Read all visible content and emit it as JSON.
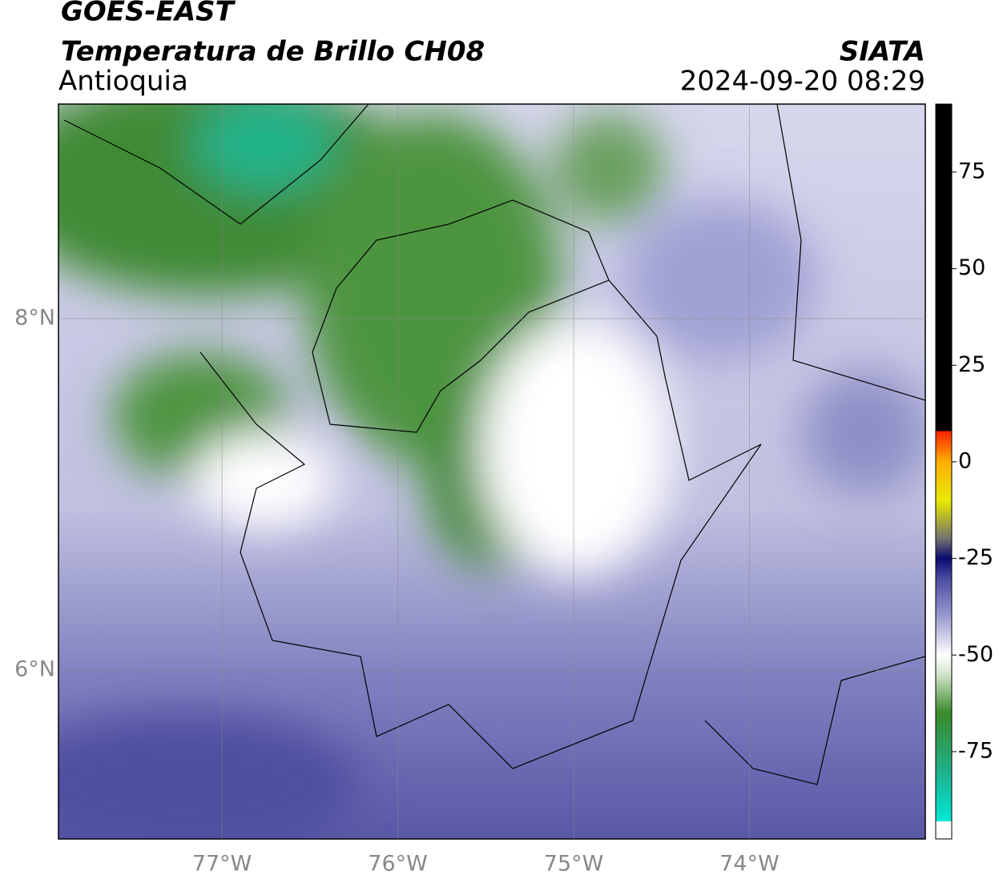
{
  "header": {
    "title": "GOES-EAST",
    "subtitle": "Temperatura de Brillo CH08",
    "region": "Antioquia",
    "source": "SIATA",
    "datetime": "2024-09-20 08:29"
  },
  "map": {
    "lonlim": [
      -77.93,
      -73.0
    ],
    "latlim": [
      5.04,
      9.22
    ],
    "xticks": [
      {
        "value": -77,
        "label": "77°W"
      },
      {
        "value": -76,
        "label": "76°W"
      },
      {
        "value": -75,
        "label": "75°W"
      },
      {
        "value": -74,
        "label": "74°W"
      }
    ],
    "yticks": [
      {
        "value": 8,
        "label": "8°N"
      },
      {
        "value": 6,
        "label": "6°N"
      }
    ],
    "grid": true
  },
  "colorbar": {
    "lim": [
      -97.6,
      92.6
    ],
    "ticks": [
      75,
      50,
      25,
      0,
      -25,
      -50,
      -75
    ],
    "stops": [
      {
        "value": -97.6,
        "color": "#ffffff"
      },
      {
        "value": -93,
        "color": "#ffffff"
      },
      {
        "value": -93,
        "color": "#00e8d8"
      },
      {
        "value": -80,
        "color": "#20b08a"
      },
      {
        "value": -65,
        "color": "#3a8a2a"
      },
      {
        "value": -55,
        "color": "#d4e4cc"
      },
      {
        "value": -50,
        "color": "#ffffff"
      },
      {
        "value": -40,
        "color": "#9a9ad0"
      },
      {
        "value": -30,
        "color": "#4a4aa0"
      },
      {
        "value": -25,
        "color": "#0a0a70"
      },
      {
        "value": -20,
        "color": "#707070"
      },
      {
        "value": -10,
        "color": "#e8e800"
      },
      {
        "value": 0,
        "color": "#ffb000"
      },
      {
        "value": 8,
        "color": "#ff2000"
      },
      {
        "value": 8,
        "color": "#000000"
      },
      {
        "value": 92.6,
        "color": "#000000"
      }
    ]
  }
}
